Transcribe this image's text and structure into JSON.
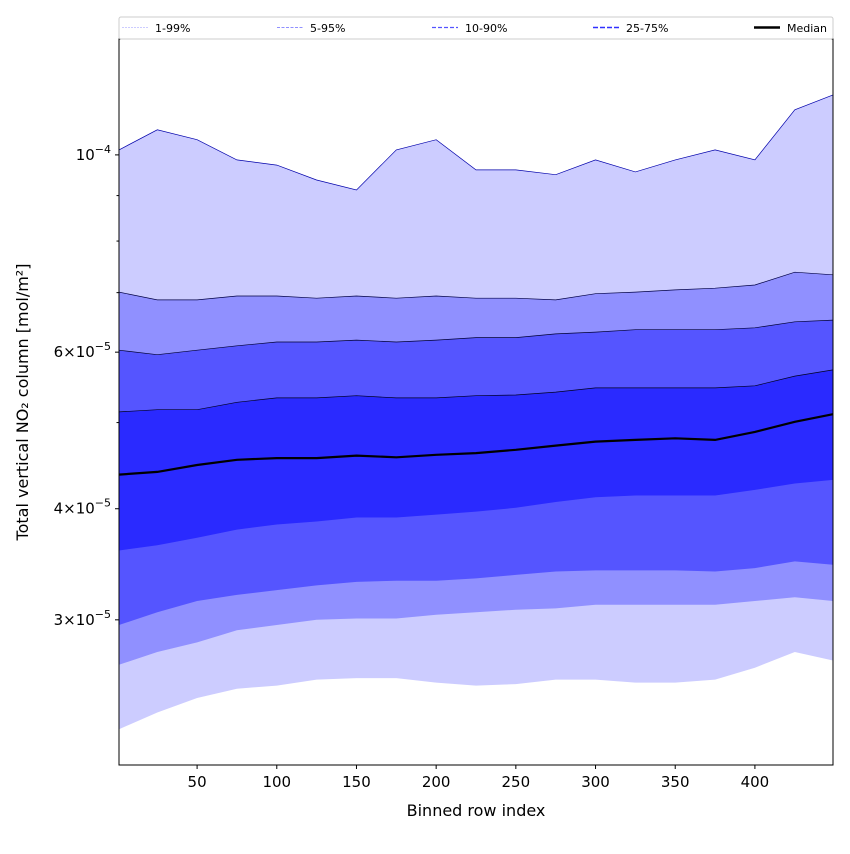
{
  "chart_data": {
    "type": "area",
    "title": "",
    "xlabel": "Binned row index",
    "ylabel": "Total vertical NO₂ column [mol/m²]",
    "yscale": "log",
    "xlim": [
      1,
      449
    ],
    "ylim": [
      2.06e-05,
      0.000135
    ],
    "value_scale": 1e-05,
    "x_ticks": [
      50,
      100,
      150,
      200,
      250,
      300,
      350,
      400
    ],
    "y_ticks": [
      {
        "value": 0.0001,
        "mantissa": "",
        "base": "10",
        "exp": "−4"
      },
      {
        "value": 6e-05,
        "mantissa": "6×",
        "base": "10",
        "exp": "−5"
      },
      {
        "value": 4e-05,
        "mantissa": "4×",
        "base": "10",
        "exp": "−5"
      },
      {
        "value": 3e-05,
        "mantissa": "3×",
        "base": "10",
        "exp": "−5"
      }
    ],
    "y_minor_ticks": [
      9e-05,
      8e-05,
      7e-05,
      5e-05
    ],
    "legend": {
      "placement": "top",
      "entries": [
        "1-99%",
        "5-95%",
        "10-90%",
        "25-75%",
        "Median"
      ]
    },
    "x": [
      1,
      25,
      50,
      75,
      100,
      125,
      150,
      175,
      200,
      225,
      250,
      275,
      300,
      325,
      350,
      375,
      400,
      425,
      449
    ],
    "bands": [
      {
        "name": "1-99%",
        "color": "#ccccff",
        "lower": [
          2.26,
          2.36,
          2.45,
          2.51,
          2.53,
          2.57,
          2.58,
          2.58,
          2.55,
          2.53,
          2.54,
          2.57,
          2.57,
          2.55,
          2.55,
          2.57,
          2.65,
          2.76,
          2.7
        ],
        "upper": [
          10.13,
          10.67,
          10.4,
          9.87,
          9.74,
          9.37,
          9.13,
          10.13,
          10.4,
          9.62,
          9.62,
          9.5,
          9.87,
          9.57,
          9.87,
          10.13,
          9.87,
          11.24,
          11.68
        ]
      },
      {
        "name": "5-95%",
        "color": "#9090ff",
        "lower": [
          2.67,
          2.76,
          2.83,
          2.92,
          2.96,
          3.0,
          3.01,
          3.01,
          3.04,
          3.06,
          3.08,
          3.09,
          3.12,
          3.12,
          3.12,
          3.12,
          3.15,
          3.18,
          3.15
        ],
        "upper": [
          7.01,
          6.87,
          6.87,
          6.94,
          6.94,
          6.9,
          6.94,
          6.9,
          6.94,
          6.9,
          6.9,
          6.87,
          6.98,
          7.01,
          7.05,
          7.08,
          7.14,
          7.38,
          7.33
        ]
      },
      {
        "name": "10-90%",
        "color": "#5555ff",
        "lower": [
          2.96,
          3.06,
          3.15,
          3.2,
          3.24,
          3.28,
          3.31,
          3.32,
          3.32,
          3.34,
          3.37,
          3.4,
          3.41,
          3.41,
          3.41,
          3.4,
          3.43,
          3.49,
          3.46
        ],
        "upper": [
          6.03,
          5.96,
          6.03,
          6.1,
          6.16,
          6.16,
          6.19,
          6.16,
          6.19,
          6.23,
          6.23,
          6.29,
          6.32,
          6.36,
          6.36,
          6.36,
          6.39,
          6.49,
          6.52
        ]
      },
      {
        "name": "25-75%",
        "color": "#2a2aff",
        "lower": [
          3.59,
          3.64,
          3.71,
          3.79,
          3.84,
          3.87,
          3.91,
          3.91,
          3.94,
          3.97,
          4.01,
          4.07,
          4.12,
          4.14,
          4.14,
          4.14,
          4.2,
          4.27,
          4.31
        ],
        "upper": [
          5.14,
          5.17,
          5.17,
          5.27,
          5.33,
          5.33,
          5.36,
          5.33,
          5.33,
          5.36,
          5.37,
          5.41,
          5.47,
          5.47,
          5.47,
          5.47,
          5.5,
          5.64,
          5.73
        ]
      }
    ],
    "median": {
      "name": "Median",
      "color": "#000000",
      "values": [
        4.37,
        4.4,
        4.48,
        4.54,
        4.56,
        4.56,
        4.59,
        4.57,
        4.6,
        4.62,
        4.66,
        4.71,
        4.76,
        4.78,
        4.8,
        4.78,
        4.88,
        5.01,
        5.11
      ]
    }
  }
}
